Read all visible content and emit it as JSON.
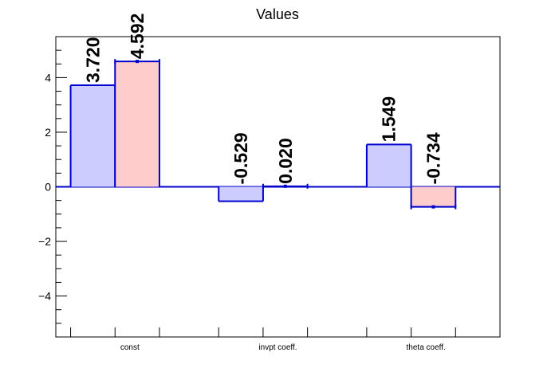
{
  "chart_data": {
    "type": "bar",
    "title": "Values",
    "xlabel": "",
    "ylabel": "",
    "categories": [
      "const",
      "invpt coeff.",
      "theta coeff."
    ],
    "series": [
      {
        "values": [
          3.72,
          -0.529,
          1.549
        ],
        "labels": [
          "3.720",
          "-0.529",
          "1.549"
        ],
        "color": "#ccccff"
      },
      {
        "values": [
          4.592,
          0.02,
          -0.734
        ],
        "labels": [
          "4.592",
          "0.020",
          "-0.734"
        ],
        "color": "#ffcccc"
      }
    ],
    "ylim": [
      -5.5,
      5.5
    ],
    "yticks": [
      -4,
      -2,
      0,
      2,
      4
    ],
    "ytick_labels": [
      "−4",
      "−2",
      "0",
      "2",
      "4"
    ],
    "edge_color": "#0000cc",
    "grid": false,
    "legend": "none"
  }
}
